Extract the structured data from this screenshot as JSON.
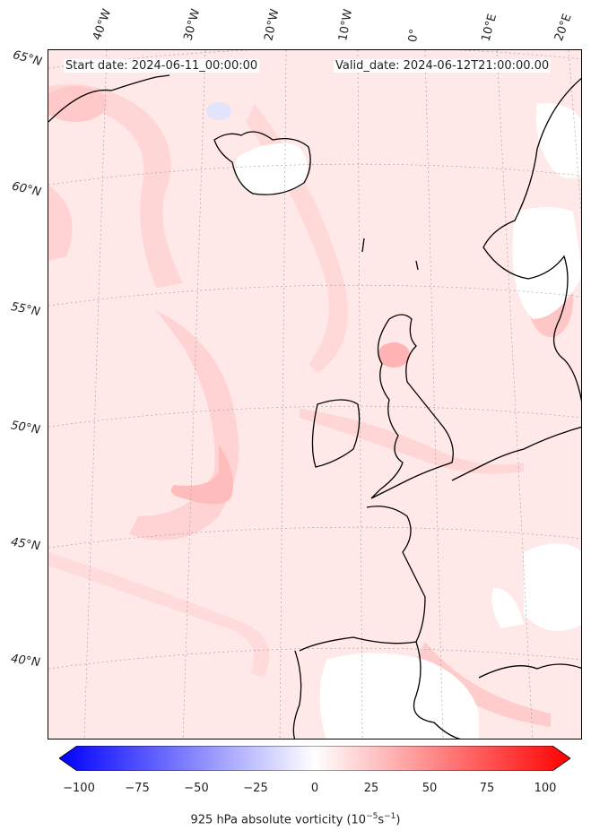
{
  "header": {
    "start_date": "Start date: 2024-06-11_00:00:00",
    "valid_date": "Valid_date: 2024-06-12T21:00:00.00"
  },
  "longitude_labels": [
    "40°W",
    "30°W",
    "20°W",
    "10°W",
    "0°",
    "10°E",
    "20°E"
  ],
  "latitude_labels": [
    "65°N",
    "60°N",
    "55°N",
    "50°N",
    "45°N",
    "40°N"
  ],
  "colorbar": {
    "ticks": [
      "−100",
      "−75",
      "−50",
      "−25",
      "0",
      "25",
      "50",
      "75",
      "100"
    ],
    "label": "925 hPa absolute vorticity (10",
    "label_exp1": "−5",
    "label_mid": "s",
    "label_exp2": "−1",
    "label_end": ")",
    "colors": {
      "negative": "#0000ff",
      "zero": "#ffffff",
      "positive": "#ff0000"
    }
  }
}
